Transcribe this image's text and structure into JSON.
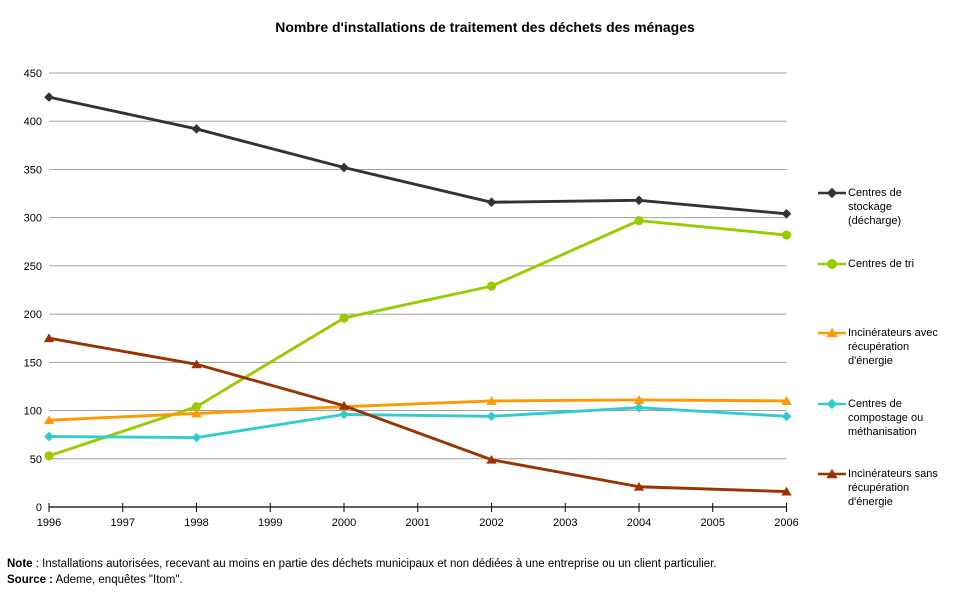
{
  "note": {
    "label": "Note",
    "text": " : Installations autorisées, recevant au moins en partie des déchets municipaux et non dédiées à une entreprise ou un client particulier."
  },
  "source": {
    "label": "Source :",
    "text": " Ademe, enquêtes \"Itom\"."
  },
  "chart_data": {
    "type": "line",
    "title": "Nombre d'installations de traitement des déchets des ménages",
    "x": [
      1996,
      1998,
      2000,
      2002,
      2004,
      2006
    ],
    "x_axis_tick_labels": [
      "1996",
      "1997",
      "1998",
      "1999",
      "2000",
      "2001",
      "2002",
      "2003",
      "2004",
      "2005",
      "2006"
    ],
    "xlabel": "",
    "ylabel": "",
    "ylim": [
      0,
      450
    ],
    "ytick_step": 50,
    "grid": true,
    "legend_position": "right",
    "axis_color": "#000000",
    "gridline_color": "#a0a0a0",
    "series": [
      {
        "name": "Centres de stockage (décharge)",
        "legend_label": "Centres de\nstockage\n(décharge)",
        "color": "#333333",
        "marker": "diamond",
        "values": [
          425,
          392,
          352,
          316,
          318,
          304
        ]
      },
      {
        "name": "Centres de tri",
        "legend_label": "Centres de tri",
        "color": "#99cc00",
        "marker": "circle",
        "values": [
          53,
          104,
          196,
          229,
          297,
          282
        ]
      },
      {
        "name": "Incinérateurs avec récupération d'énergie",
        "legend_label": "Incinérateurs avec\nrécupération\nd'énergie",
        "color": "#ff9900",
        "marker": "triangle",
        "values": [
          90,
          97,
          104,
          110,
          111,
          110
        ]
      },
      {
        "name": "Centres de compostage ou méthanisation",
        "legend_label": "Centres de\ncompostage ou\nméthanisation",
        "color": "#33cccc",
        "marker": "diamond",
        "values": [
          73,
          72,
          96,
          94,
          103,
          94
        ]
      },
      {
        "name": "Incinérateurs sans récupération d'énergie",
        "legend_label": "Incinérateurs sans\nrécupération\nd'énergie",
        "color": "#993300",
        "marker": "triangle",
        "values": [
          175,
          148,
          105,
          49,
          21,
          16
        ]
      }
    ]
  }
}
